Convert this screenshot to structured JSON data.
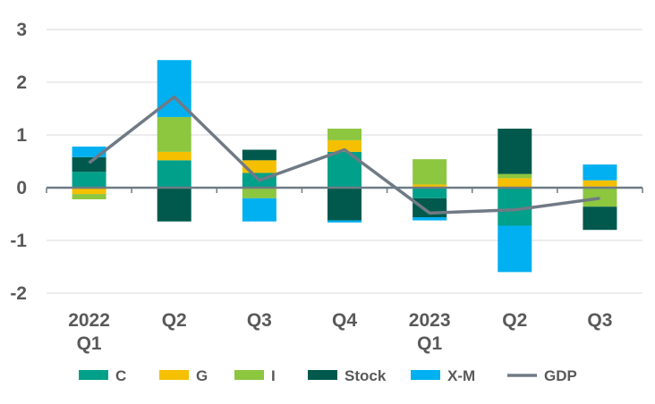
{
  "chart_data": {
    "type": "bar",
    "stacked": true,
    "title": "",
    "xlabel": "",
    "ylabel": "",
    "ylim": [
      -2,
      3
    ],
    "yticks": [
      -2,
      -1,
      0,
      1,
      2,
      3
    ],
    "grid": true,
    "legend_position": "bottom",
    "categories": [
      {
        "line1": "2022",
        "line2": "Q1"
      },
      {
        "line1": "Q2",
        "line2": ""
      },
      {
        "line1": "Q3",
        "line2": ""
      },
      {
        "line1": "Q4",
        "line2": ""
      },
      {
        "line1": "2023",
        "line2": "Q1"
      },
      {
        "line1": "Q2",
        "line2": ""
      },
      {
        "line1": "Q3",
        "line2": ""
      }
    ],
    "series": [
      {
        "name": "C",
        "color": "#00a08a",
        "values": [
          0.3,
          0.52,
          0.28,
          0.68,
          -0.2,
          -0.72,
          0.02
        ]
      },
      {
        "name": "G",
        "color": "#f5c000",
        "values": [
          -0.12,
          0.16,
          0.24,
          0.22,
          0.06,
          0.18,
          0.12
        ]
      },
      {
        "name": "I",
        "color": "#8dc63f",
        "values": [
          -0.1,
          0.66,
          -0.2,
          0.22,
          0.48,
          0.08,
          -0.36
        ]
      },
      {
        "name": "Stock",
        "color": "#00594c",
        "values": [
          0.28,
          -0.64,
          0.2,
          -0.62,
          -0.36,
          0.86,
          -0.44
        ]
      },
      {
        "name": "X-M",
        "color": "#00b0f0",
        "values": [
          0.2,
          1.08,
          -0.44,
          -0.04,
          -0.06,
          -0.88,
          0.3
        ]
      }
    ],
    "line": {
      "name": "GDP",
      "color": "#707a85",
      "values": [
        0.47,
        1.72,
        0.14,
        0.72,
        -0.48,
        -0.42,
        -0.2
      ]
    }
  }
}
